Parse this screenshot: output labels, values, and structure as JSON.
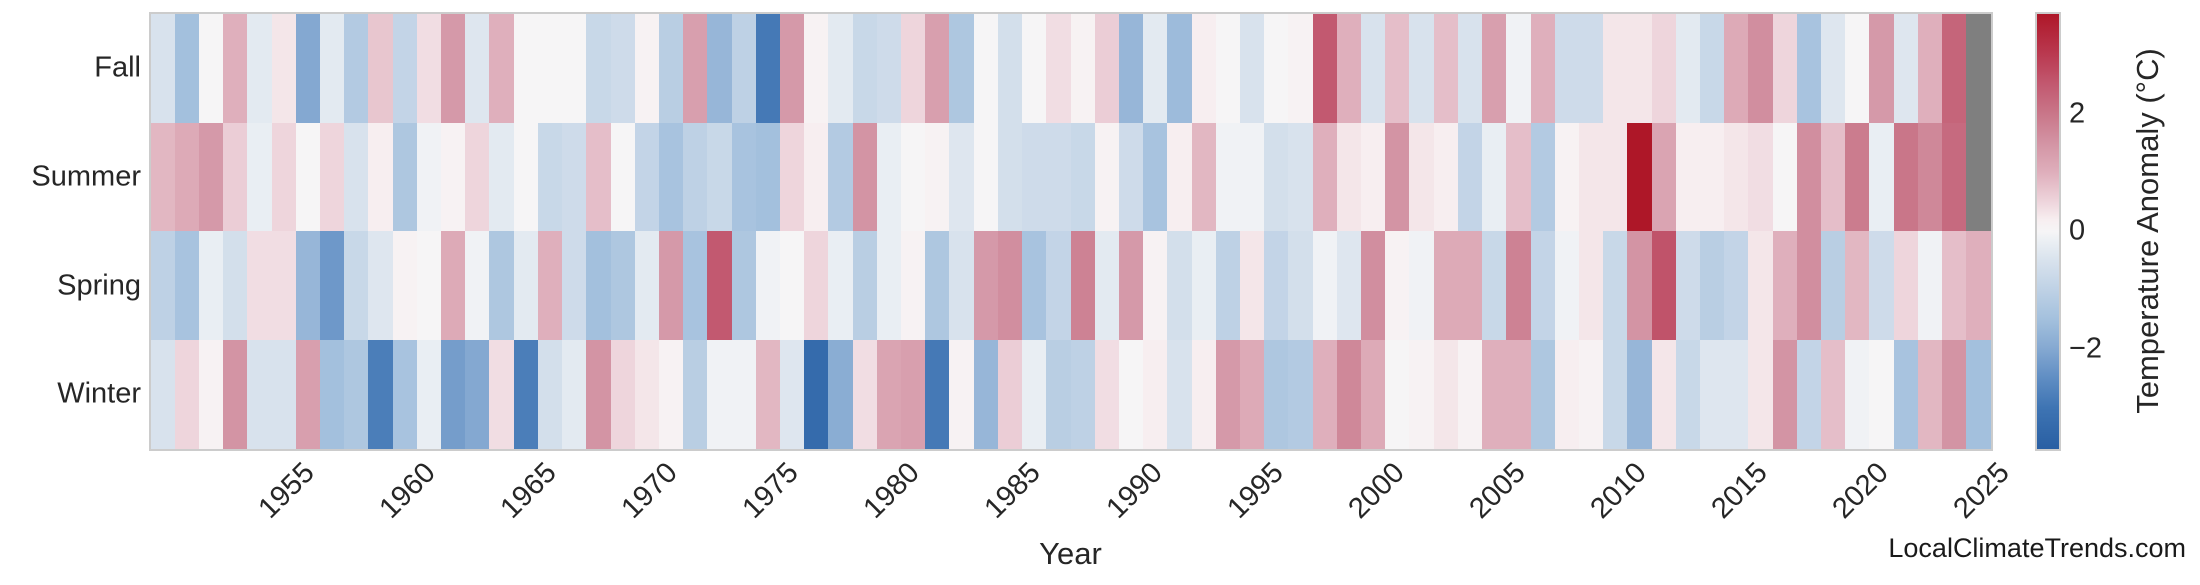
{
  "watermark": "LocalClimateTrends.com",
  "chart_data": {
    "type": "heatmap",
    "title": "",
    "xlabel": "Year",
    "ylabel": "",
    "colorbar_label": "Temperature Anomaly (°C)",
    "colorbar_ticks": [
      2,
      0,
      -2
    ],
    "vmin": -3.7,
    "vmax": 3.7,
    "legend_position": "right",
    "grid": false,
    "missing_color": "#7f7f7f",
    "text_color": "#262626",
    "border_color": "#cccccc",
    "rows": [
      "Fall",
      "Summer",
      "Spring",
      "Winter"
    ],
    "x_tick_years": [
      1955,
      1960,
      1965,
      1970,
      1975,
      1980,
      1985,
      1990,
      1995,
      2000,
      2005,
      2010,
      2015,
      2020,
      2025
    ],
    "years": [
      1950,
      1951,
      1952,
      1953,
      1954,
      1955,
      1956,
      1957,
      1958,
      1959,
      1960,
      1961,
      1962,
      1963,
      1964,
      1965,
      1966,
      1967,
      1968,
      1969,
      1970,
      1971,
      1972,
      1973,
      1974,
      1975,
      1976,
      1977,
      1978,
      1979,
      1980,
      1981,
      1982,
      1983,
      1984,
      1985,
      1986,
      1987,
      1988,
      1989,
      1990,
      1991,
      1992,
      1993,
      1994,
      1995,
      1996,
      1997,
      1998,
      1999,
      2000,
      2001,
      2002,
      2003,
      2004,
      2005,
      2006,
      2007,
      2008,
      2009,
      2010,
      2011,
      2012,
      2013,
      2014,
      2015,
      2016,
      2017,
      2018,
      2019,
      2020,
      2021,
      2022,
      2023,
      2024,
      2025
    ],
    "series": [
      {
        "name": "Fall",
        "values": [
          -0.5,
          -1.5,
          0,
          1,
          -0.3,
          0.3,
          -2,
          -0.3,
          -1.2,
          0.7,
          -0.9,
          0.4,
          1.4,
          -0.4,
          1,
          0,
          0,
          0,
          -0.8,
          -0.7,
          0.1,
          -1.1,
          1.3,
          -1.7,
          -1,
          -2.9,
          1.4,
          0.1,
          -0.3,
          -0.8,
          -0.7,
          0.5,
          1.3,
          -1.3,
          0,
          -0.6,
          0,
          0.4,
          0.1,
          0.6,
          -1.7,
          -0.3,
          -1.6,
          0.2,
          0,
          -0.5,
          0,
          0.1,
          2.5,
          1,
          -0.5,
          0.8,
          -0.5,
          0.8,
          -0.5,
          1.3,
          -0.1,
          1,
          -0.7,
          -0.7,
          0.3,
          0.3,
          0.5,
          -0.3,
          -0.8,
          1.1,
          1.6,
          0.5,
          -1.4,
          -0.4,
          0,
          1.4,
          -0.4,
          1,
          2.3,
          null
        ]
      },
      {
        "name": "Summer",
        "values": [
          0.9,
          1.1,
          1.4,
          0.6,
          -0.2,
          0.5,
          0,
          0.5,
          -0.5,
          0.2,
          -1.3,
          -0.1,
          0.1,
          0.5,
          -0.3,
          0,
          -0.8,
          -0.7,
          0.8,
          0,
          -0.9,
          -1.4,
          -1,
          -0.8,
          -1.4,
          -1.5,
          0.5,
          0.2,
          -1.2,
          1.5,
          -0.2,
          0,
          0.1,
          -0.4,
          0,
          -0.6,
          -0.7,
          -0.7,
          -0.8,
          0.1,
          -0.7,
          -1.4,
          0.2,
          0.9,
          -0.1,
          -0.1,
          -0.6,
          -0.5,
          1,
          0.3,
          0.2,
          1.5,
          0.3,
          0.2,
          -0.9,
          -0.2,
          0.8,
          -1.2,
          0.1,
          0.3,
          0.3,
          3.7,
          1.2,
          0.2,
          0.2,
          0.3,
          0.4,
          0,
          1.6,
          0.8,
          1.9,
          -0.2,
          2,
          1.7,
          2.2,
          null
        ]
      },
      {
        "name": "Spring",
        "values": [
          -1,
          -1.4,
          -0.2,
          -0.6,
          0.4,
          0.4,
          -1.7,
          -2.3,
          -0.8,
          -0.4,
          0.1,
          0,
          1.1,
          -0.1,
          -1.3,
          -0.3,
          1,
          -0.7,
          -1.5,
          -1.3,
          -0.3,
          1.4,
          -1.4,
          2.5,
          -1.3,
          -0.1,
          0,
          0.5,
          -0.2,
          -1.1,
          -0.2,
          0.1,
          -1.3,
          -0.5,
          1.4,
          1.6,
          -1.4,
          -0.9,
          1.8,
          -0.3,
          1.4,
          0.1,
          -0.6,
          -0.2,
          -1,
          0.3,
          -0.9,
          -0.6,
          -0.1,
          -0.4,
          1.6,
          0.1,
          -0.1,
          1.1,
          1.1,
          -0.8,
          1.8,
          -0.9,
          -0.1,
          0.3,
          -0.8,
          1.5,
          2.6,
          -0.7,
          -1.1,
          -0.9,
          0.3,
          1,
          1.6,
          -1.1,
          0.9,
          -0.7,
          0.5,
          -0.1,
          0.8,
          1
        ]
      },
      {
        "name": "Winter",
        "values": [
          -0.5,
          0.5,
          0.1,
          1.5,
          -0.5,
          -0.5,
          1.3,
          -1.5,
          -1.3,
          -2.8,
          -1.4,
          -0.2,
          -2.2,
          -2,
          0.4,
          -2.8,
          -0.6,
          -0.3,
          1.5,
          0.5,
          0.3,
          0.1,
          -1.1,
          -0.1,
          -0.1,
          0.9,
          -0.4,
          -3.3,
          -1.9,
          0.4,
          1.2,
          1.3,
          -2.9,
          0.1,
          -1.7,
          0.6,
          -0.2,
          -1.1,
          -1,
          0.4,
          0,
          0.2,
          -0.5,
          0.2,
          1.4,
          1.1,
          -1.3,
          -1.2,
          1,
          1.7,
          1.1,
          0,
          0.1,
          0.3,
          0.1,
          1,
          1,
          -1.3,
          0.2,
          0.1,
          -0.8,
          -1.7,
          0.3,
          -0.8,
          -0.4,
          -0.4,
          0.3,
          1.5,
          -0.9,
          0.8,
          -0.1,
          0,
          -1.4,
          0.9,
          1.5,
          -1.5
        ]
      }
    ],
    "colormap_stops": [
      [
        -3.7,
        "#295fa3"
      ],
      [
        -3.0,
        "#3e74b3"
      ],
      [
        -2.5,
        "#5f8dc3"
      ],
      [
        -2.0,
        "#84a8d1"
      ],
      [
        -1.5,
        "#a3c0dd"
      ],
      [
        -1.0,
        "#bed1e5"
      ],
      [
        -0.5,
        "#d8e2ed"
      ],
      [
        -0.2,
        "#e9eef3"
      ],
      [
        0.0,
        "#f6f5f6"
      ],
      [
        0.2,
        "#f7eef0"
      ],
      [
        0.5,
        "#eed5dc"
      ],
      [
        1.0,
        "#dfafbc"
      ],
      [
        1.5,
        "#d394a4"
      ],
      [
        2.0,
        "#c97689"
      ],
      [
        2.5,
        "#c25970"
      ],
      [
        3.0,
        "#ba3a51"
      ],
      [
        3.7,
        "#ae1728"
      ]
    ]
  }
}
